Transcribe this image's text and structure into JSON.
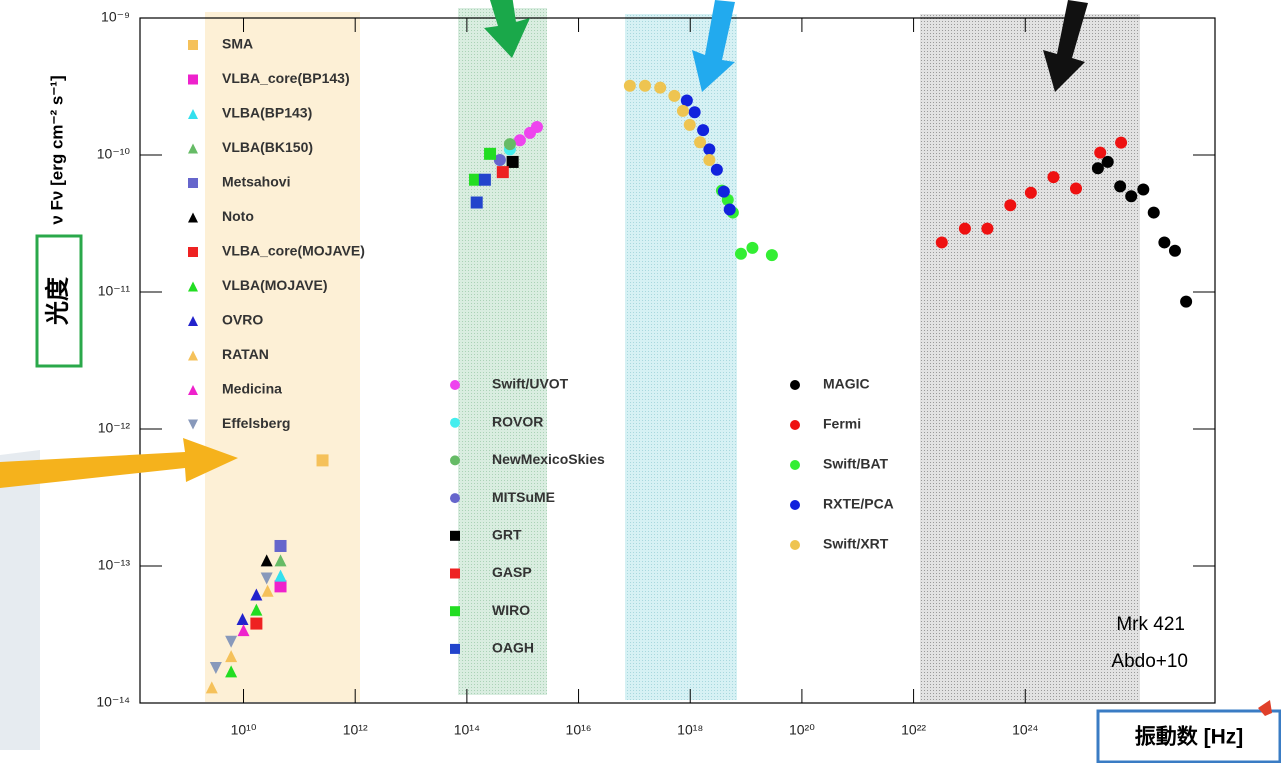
{
  "chart_data": {
    "type": "scatter",
    "y_label": "ν Fν [erg cm⁻² s⁻¹]",
    "x_label": "振動数 [Hz]",
    "y_annotation": "光度",
    "annotations": [
      "Mrk 421",
      "Abdo+10"
    ],
    "log_x": true,
    "log_y": true,
    "xlim": [
      140000000.0,
      2.5e+27
    ],
    "ylim": [
      1e-14,
      1e-09
    ],
    "xticks": [
      {
        "value": 10000000000.0,
        "label": "10¹⁰"
      },
      {
        "value": 1000000000000.0,
        "label": "10¹²"
      },
      {
        "value": 100000000000000.0,
        "label": "10¹⁴"
      },
      {
        "value": 1e+16,
        "label": "10¹⁶"
      },
      {
        "value": 1e+18,
        "label": "10¹⁸"
      },
      {
        "value": 1e+20,
        "label": "10²⁰"
      },
      {
        "value": 1e+22,
        "label": "10²²"
      },
      {
        "value": 1e+24,
        "label": "10²⁴"
      }
    ],
    "yticks": [
      {
        "value": 1e-09,
        "label": "10⁻⁹"
      },
      {
        "value": 1e-10,
        "label": "10⁻¹⁰"
      },
      {
        "value": 1e-11,
        "label": "10⁻¹¹"
      },
      {
        "value": 1e-12,
        "label": "10⁻¹²"
      },
      {
        "value": 1e-13,
        "label": "10⁻¹³"
      },
      {
        "value": 1e-14,
        "label": "10⁻¹⁴"
      }
    ],
    "series": [
      {
        "name": "SMA",
        "color": "#f5c15a",
        "marker": "square",
        "legend": 0,
        "x": [
          260000000000.0
        ],
        "values": [
          5.9e-13
        ]
      },
      {
        "name": "VLBA_core(BP143)",
        "color": "#ee22cc",
        "marker": "square",
        "legend": 0,
        "x": [
          46000000000.0
        ],
        "values": [
          7.1e-14
        ]
      },
      {
        "name": "VLBA(BP143)",
        "color": "#33e0ee",
        "marker": "triangle",
        "legend": 0,
        "x": [
          46000000000.0
        ],
        "values": [
          8.5e-14
        ]
      },
      {
        "name": "VLBA(BK150)",
        "color": "#66bb66",
        "marker": "triangle",
        "legend": 0,
        "x": [
          46000000000.0
        ],
        "values": [
          1.1e-13
        ]
      },
      {
        "name": "Metsahovi",
        "color": "#6666cc",
        "marker": "square",
        "legend": 0,
        "x": [
          46000000000.0
        ],
        "values": [
          1.4e-13
        ]
      },
      {
        "name": "Noto",
        "color": "#000000",
        "marker": "triangle",
        "legend": 0,
        "x": [
          26000000000.0
        ],
        "values": [
          1.1e-13
        ]
      },
      {
        "name": "VLBA_core(MOJAVE)",
        "color": "#ee2222",
        "marker": "square",
        "legend": 0,
        "x": [
          17000000000.0
        ],
        "values": [
          3.8e-14
        ]
      },
      {
        "name": "VLBA(MOJAVE)",
        "color": "#22dd22",
        "marker": "triangle",
        "legend": 0,
        "x": [
          6000000000.0,
          17000000000.0
        ],
        "values": [
          1.7e-14,
          4.8e-14
        ]
      },
      {
        "name": "OVRO",
        "color": "#2222cc",
        "marker": "triangle",
        "legend": 0,
        "x": [
          9600000000.0,
          17000000000.0
        ],
        "values": [
          4.1e-14,
          6.2e-14
        ]
      },
      {
        "name": "RATAN",
        "color": "#f5c15a",
        "marker": "triangle",
        "legend": 0,
        "x": [
          2700000000.0,
          6000000000.0,
          27000000000.0
        ],
        "values": [
          1.3e-14,
          2.2e-14,
          6.6e-14
        ]
      },
      {
        "name": "Medicina",
        "color": "#ee22cc",
        "marker": "triangle",
        "legend": 0,
        "x": [
          10000000000.0
        ],
        "values": [
          3.4e-14
        ]
      },
      {
        "name": "Effelsberg",
        "color": "#8899bb",
        "marker": "triangle-down",
        "legend": 0,
        "x": [
          3200000000.0,
          6000000000.0,
          26000000000.0
        ],
        "values": [
          1.8e-14,
          2.8e-14,
          8.1e-14
        ]
      },
      {
        "name": "Swift/UVOT",
        "color": "#ee44ee",
        "marker": "circle",
        "legend": 1,
        "x": [
          890000000000000.0,
          1350000000000000.0,
          1800000000000000.0
        ],
        "values": [
          1.28e-10,
          1.45e-10,
          1.6e-10
        ]
      },
      {
        "name": "ROVOR",
        "color": "#44eeee",
        "marker": "circle",
        "legend": 1,
        "x": [
          590000000000000.0
        ],
        "values": [
          1.1e-10
        ]
      },
      {
        "name": "NewMexicoSkies",
        "color": "#66bb66",
        "marker": "circle",
        "legend": 1,
        "x": [
          590000000000000.0
        ],
        "values": [
          1.2e-10
        ]
      },
      {
        "name": "MITSuME",
        "color": "#6666cc",
        "marker": "circle",
        "legend": 1,
        "x": [
          390000000000000.0
        ],
        "values": [
          9.2e-11
        ]
      },
      {
        "name": "GRT",
        "color": "#000000",
        "marker": "square",
        "legend": 1,
        "x": [
          660000000000000.0
        ],
        "values": [
          8.9e-11
        ]
      },
      {
        "name": "GASP",
        "color": "#ee2222",
        "marker": "square",
        "legend": 1,
        "x": [
          440000000000000.0
        ],
        "values": [
          7.5e-11
        ]
      },
      {
        "name": "WIRO",
        "color": "#22dd22",
        "marker": "square",
        "legend": 1,
        "x": [
          140000000000000.0,
          260000000000000.0
        ],
        "values": [
          6.6e-11,
          1.02e-10
        ]
      },
      {
        "name": "OAGH",
        "color": "#2244cc",
        "marker": "square",
        "legend": 1,
        "x": [
          150000000000000.0,
          210000000000000.0
        ],
        "values": [
          4.5e-11,
          6.6e-11
        ]
      },
      {
        "name": "MAGIC",
        "color": "#000000",
        "marker": "circle",
        "legend": 2,
        "x": [
          2e+25,
          3e+25,
          5e+25,
          7.9e+25,
          1.3e+26,
          2e+26,
          3.1e+26,
          4.8e+26,
          7.6e+26
        ],
        "values": [
          8e-11,
          8.9e-11,
          5.9e-11,
          5e-11,
          5.6e-11,
          3.8e-11,
          2.3e-11,
          2e-11,
          8.5e-12
        ]
      },
      {
        "name": "Fermi",
        "color": "#ee1111",
        "marker": "circle",
        "legend": 2,
        "x": [
          3.2e+22,
          8.3e+22,
          2.1e+23,
          5.4e+23,
          1.26e+24,
          3.2e+24,
          8.1e+24,
          2.2e+25,
          5.2e+25
        ],
        "values": [
          2.3e-11,
          2.9e-11,
          2.9e-11,
          4.3e-11,
          5.3e-11,
          6.9e-11,
          5.7e-11,
          1.04e-10,
          1.23e-10
        ]
      },
      {
        "name": "Swift/BAT",
        "color": "#33ee33",
        "marker": "circle",
        "legend": 2,
        "x": [
          3.7e+18,
          4.7e+18,
          5.8e+18,
          8.1e+18,
          1.3e+19,
          2.9e+19
        ],
        "values": [
          5.5e-11,
          4.7e-11,
          3.8e-11,
          1.9e-11,
          2.1e-11,
          1.86e-11
        ]
      },
      {
        "name": "RXTE/PCA",
        "color": "#1122dd",
        "marker": "circle",
        "legend": 2,
        "x": [
          8.7e+17,
          1.2e+18,
          1.7e+18,
          2.2e+18,
          3e+18,
          4e+18,
          5.1e+18
        ],
        "values": [
          2.5e-10,
          2.05e-10,
          1.52e-10,
          1.1e-10,
          7.8e-11,
          5.4e-11,
          4e-11
        ]
      },
      {
        "name": "Swift/XRT",
        "color": "#eec450",
        "marker": "circle",
        "legend": 2,
        "x": [
          8.3e+16,
          1.55e+17,
          2.9e+17,
          5.2e+17,
          7.4e+17,
          9.8e+17,
          1.5e+18,
          2.2e+18
        ],
        "values": [
          3.2e-10,
          3.2e-10,
          3.1e-10,
          2.7e-10,
          2.1e-10,
          1.66e-10,
          1.24e-10,
          9.2e-11
        ]
      }
    ]
  }
}
